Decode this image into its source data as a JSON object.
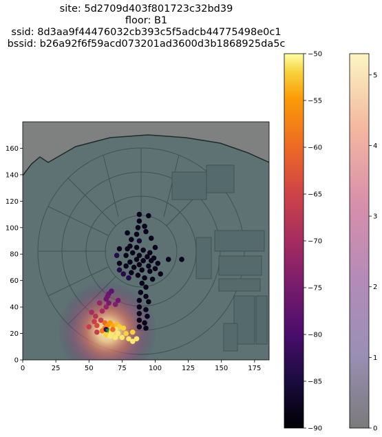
{
  "title_lines": [
    "site: 5d2709d403f801723c32bd39",
    "floor: B1",
    "ssid: 8d3aa9f44476032cb393c5f5adcb44775498e0c1",
    "bssid: b26a92f6f59acd073201ad3600d3b1868925da5c"
  ],
  "chart_data": {
    "type": "scatter",
    "title": "site: 5d2709d403f801723c32bd39\nfloor: B1\nssid: 8d3aa9f44476032cb393c5f5adcb44775498e0c1\nbssid: b26a92f6f59acd073201ad3600d3b1868925da5c",
    "xlabel": "",
    "ylabel": "",
    "xlim": [
      0,
      186
    ],
    "ylim": [
      0,
      180
    ],
    "xticks": [
      0,
      25,
      50,
      75,
      100,
      125,
      150,
      175
    ],
    "yticks": [
      0,
      20,
      40,
      60,
      80,
      100,
      120,
      140,
      160
    ],
    "background": "floor map of floor B1",
    "grid": false,
    "heatmap": {
      "colormap": "magma",
      "range": [
        0,
        5.3
      ],
      "peak": [
        64,
        22
      ],
      "colorbar_ticks": [
        0,
        1,
        2,
        3,
        4,
        5
      ]
    },
    "scatter_colorbar": {
      "colormap": "inferno",
      "range": [
        -90,
        -50
      ],
      "ticks": [
        -90,
        -85,
        -80,
        -75,
        -70,
        -65,
        -60,
        -55,
        -50
      ]
    },
    "points": [
      {
        "x": 88,
        "y": 110,
        "rssi": -88
      },
      {
        "x": 95,
        "y": 109,
        "rssi": -88
      },
      {
        "x": 88,
        "y": 105,
        "rssi": -88
      },
      {
        "x": 92,
        "y": 101,
        "rssi": -88
      },
      {
        "x": 87,
        "y": 100,
        "rssi": -88
      },
      {
        "x": 93,
        "y": 97,
        "rssi": -88
      },
      {
        "x": 79,
        "y": 96,
        "rssi": -88
      },
      {
        "x": 86,
        "y": 95,
        "rssi": -88
      },
      {
        "x": 82,
        "y": 91,
        "rssi": -88
      },
      {
        "x": 88,
        "y": 90,
        "rssi": -86
      },
      {
        "x": 97,
        "y": 92,
        "rssi": -88
      },
      {
        "x": 81,
        "y": 86,
        "rssi": -88
      },
      {
        "x": 86,
        "y": 85,
        "rssi": -88
      },
      {
        "x": 100,
        "y": 85,
        "rssi": -88
      },
      {
        "x": 73,
        "y": 84,
        "rssi": -88
      },
      {
        "x": 79,
        "y": 84,
        "rssi": -88
      },
      {
        "x": 91,
        "y": 83,
        "rssi": -88
      },
      {
        "x": 83,
        "y": 81,
        "rssi": -88
      },
      {
        "x": 96,
        "y": 81,
        "rssi": -88
      },
      {
        "x": 88,
        "y": 79,
        "rssi": -88
      },
      {
        "x": 78,
        "y": 79,
        "rssi": -88
      },
      {
        "x": 71,
        "y": 79,
        "rssi": -84
      },
      {
        "x": 94,
        "y": 78,
        "rssi": -88
      },
      {
        "x": 99,
        "y": 77,
        "rssi": -88
      },
      {
        "x": 86,
        "y": 76,
        "rssi": -88
      },
      {
        "x": 110,
        "y": 76,
        "rssi": -88
      },
      {
        "x": 120,
        "y": 76,
        "rssi": -88
      },
      {
        "x": 91,
        "y": 75,
        "rssi": -88
      },
      {
        "x": 97,
        "y": 75,
        "rssi": -88
      },
      {
        "x": 81,
        "y": 74,
        "rssi": -88
      },
      {
        "x": 73,
        "y": 73,
        "rssi": -88
      },
      {
        "x": 102,
        "y": 73,
        "rssi": -88
      },
      {
        "x": 88,
        "y": 72,
        "rssi": -88
      },
      {
        "x": 78,
        "y": 71,
        "rssi": -88
      },
      {
        "x": 95,
        "y": 71,
        "rssi": -88
      },
      {
        "x": 84,
        "y": 70,
        "rssi": -88
      },
      {
        "x": 100,
        "y": 69,
        "rssi": -88
      },
      {
        "x": 90,
        "y": 68,
        "rssi": -88
      },
      {
        "x": 73,
        "y": 68,
        "rssi": -84
      },
      {
        "x": 82,
        "y": 66,
        "rssi": -88
      },
      {
        "x": 96,
        "y": 67,
        "rssi": -88
      },
      {
        "x": 104,
        "y": 65,
        "rssi": -88
      },
      {
        "x": 76,
        "y": 65,
        "rssi": -84
      },
      {
        "x": 87,
        "y": 64,
        "rssi": -88
      },
      {
        "x": 92,
        "y": 62,
        "rssi": -88
      },
      {
        "x": 80,
        "y": 62,
        "rssi": -84
      },
      {
        "x": 98,
        "y": 61,
        "rssi": -88
      },
      {
        "x": 90,
        "y": 58,
        "rssi": -88
      },
      {
        "x": 93,
        "y": 55,
        "rssi": -88
      },
      {
        "x": 89,
        "y": 51,
        "rssi": -88
      },
      {
        "x": 93,
        "y": 48,
        "rssi": -88
      },
      {
        "x": 88,
        "y": 45,
        "rssi": -88
      },
      {
        "x": 95,
        "y": 44,
        "rssi": -88
      },
      {
        "x": 88,
        "y": 40,
        "rssi": -88
      },
      {
        "x": 93,
        "y": 38,
        "rssi": -88
      },
      {
        "x": 88,
        "y": 35,
        "rssi": -88
      },
      {
        "x": 94,
        "y": 33,
        "rssi": -88
      },
      {
        "x": 88,
        "y": 30,
        "rssi": -88
      },
      {
        "x": 92,
        "y": 28,
        "rssi": -88
      },
      {
        "x": 88,
        "y": 25,
        "rssi": -88
      },
      {
        "x": 93,
        "y": 24,
        "rssi": -88
      },
      {
        "x": 67,
        "y": 52,
        "rssi": -78
      },
      {
        "x": 65,
        "y": 50,
        "rssi": -77
      },
      {
        "x": 64,
        "y": 48,
        "rssi": -76
      },
      {
        "x": 63,
        "y": 46,
        "rssi": -76
      },
      {
        "x": 72,
        "y": 45,
        "rssi": -76
      },
      {
        "x": 65,
        "y": 43,
        "rssi": -75
      },
      {
        "x": 58,
        "y": 43,
        "rssi": -72
      },
      {
        "x": 70,
        "y": 42,
        "rssi": -74
      },
      {
        "x": 63,
        "y": 40,
        "rssi": -72
      },
      {
        "x": 52,
        "y": 36,
        "rssi": -70
      },
      {
        "x": 60,
        "y": 37,
        "rssi": -70
      },
      {
        "x": 55,
        "y": 33,
        "rssi": -68
      },
      {
        "x": 59,
        "y": 30,
        "rssi": -66
      },
      {
        "x": 54,
        "y": 29,
        "rssi": -66
      },
      {
        "x": 50,
        "y": 25,
        "rssi": -66
      },
      {
        "x": 56,
        "y": 26,
        "rssi": -64
      },
      {
        "x": 62,
        "y": 28,
        "rssi": -60
      },
      {
        "x": 62,
        "y": 24,
        "rssi": -58
      },
      {
        "x": 64,
        "y": 26,
        "rssi": -56
      },
      {
        "x": 66,
        "y": 28,
        "rssi": -55
      },
      {
        "x": 68,
        "y": 26,
        "rssi": -54
      },
      {
        "x": 71,
        "y": 27,
        "rssi": -53
      },
      {
        "x": 73,
        "y": 25,
        "rssi": -52
      },
      {
        "x": 76,
        "y": 24,
        "rssi": -52
      },
      {
        "x": 70,
        "y": 23,
        "rssi": -51
      },
      {
        "x": 65,
        "y": 22,
        "rssi": -52
      },
      {
        "x": 60,
        "y": 22,
        "rssi": -58
      },
      {
        "x": 56,
        "y": 21,
        "rssi": -66
      },
      {
        "x": 67,
        "y": 20,
        "rssi": -51
      },
      {
        "x": 72,
        "y": 20,
        "rssi": -51
      },
      {
        "x": 78,
        "y": 20,
        "rssi": -52
      },
      {
        "x": 83,
        "y": 21,
        "rssi": -52
      },
      {
        "x": 63,
        "y": 19,
        "rssi": -52
      },
      {
        "x": 70,
        "y": 17,
        "rssi": -51
      },
      {
        "x": 75,
        "y": 17,
        "rssi": -51
      },
      {
        "x": 80,
        "y": 16,
        "rssi": -51
      },
      {
        "x": 83,
        "y": 14,
        "rssi": -51
      },
      {
        "x": 66,
        "y": 18,
        "rssi": -51
      },
      {
        "x": 86,
        "y": 16,
        "rssi": -51
      },
      {
        "x": 68,
        "y": 23,
        "rssi": -60
      },
      {
        "x": 63,
        "y": 23,
        "rssi": -82
      }
    ]
  }
}
